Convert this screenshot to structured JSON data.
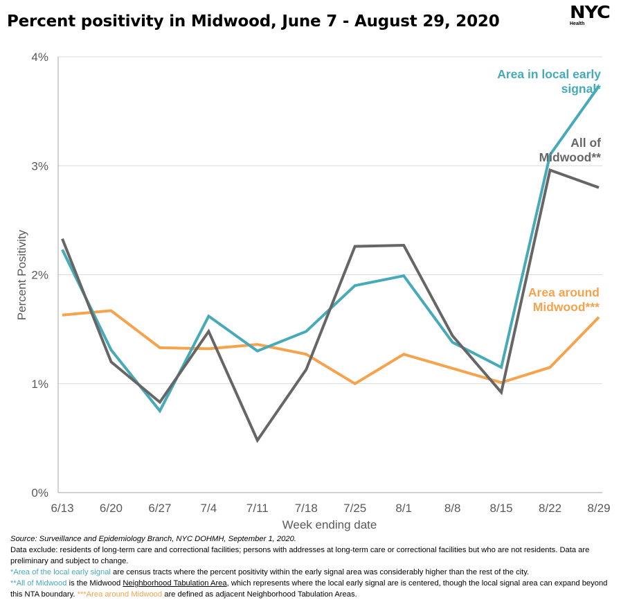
{
  "title": "Percent positivity in Midwood, June 7 - August 29, 2020",
  "logo": {
    "mark": "NYC",
    "sub": "Health"
  },
  "chart_data": {
    "type": "line",
    "title": "Percent positivity in Midwood, June 7 - August 29, 2020",
    "xlabel": "Week ending date",
    "ylabel": "Percent Positivity",
    "categories": [
      "6/13",
      "6/20",
      "6/27",
      "7/4",
      "7/11",
      "7/18",
      "7/25",
      "8/1",
      "8/8",
      "8/15",
      "8/22",
      "8/29"
    ],
    "ylim": [
      0,
      4
    ],
    "yticks": [
      0,
      1,
      2,
      3,
      4
    ],
    "ytick_labels": [
      "0%",
      "1%",
      "2%",
      "3%",
      "4%"
    ],
    "grid": true,
    "series": [
      {
        "name": "Area in local early signal*",
        "label_lines": [
          "Area in local early",
          "signal*"
        ],
        "color": "#46aab9",
        "values": [
          2.23,
          1.31,
          0.75,
          1.62,
          1.3,
          1.48,
          1.9,
          1.99,
          1.38,
          1.15,
          3.1,
          3.73
        ]
      },
      {
        "name": "All of Midwood**",
        "label_lines": [
          "All of",
          "Midwood**"
        ],
        "color": "#666666",
        "values": [
          2.33,
          1.2,
          0.83,
          1.48,
          0.48,
          1.13,
          2.26,
          2.27,
          1.44,
          0.92,
          2.96,
          2.8
        ]
      },
      {
        "name": "Area around Midwood***",
        "label_lines": [
          "Area around",
          "Midwood***"
        ],
        "color": "#f5a34c",
        "values": [
          1.63,
          1.67,
          1.33,
          1.32,
          1.36,
          1.27,
          1.0,
          1.27,
          1.14,
          1.01,
          1.15,
          1.61
        ]
      }
    ]
  },
  "notes": {
    "source": "Source: Surveillance and Epidemiology Branch, NYC DOHMH, September 1, 2020.",
    "exclude": "Data exclude: residents of long-term care and correctional facilities; persons with addresses at long-term care or correctional facilities but who are not residents. Data are preliminary and subject to change.",
    "n1_colored": "*Area of the local early signal",
    "n1_rest": " are census tracts where the percent positivity within the early signal area was considerably higher than the rest of the city.",
    "n2_colored": "**All of Midwood",
    "n2_mid1": " is the Midwood ",
    "n2_link": "Neighborhood Tabulation Area",
    "n2_mid2": ", which represents where the local early signal are is centered, though the local signal area can expand beyond this NTA boundary. ",
    "n2_colored2": "***Area around Midwood",
    "n2_end": " are defined as adjacent Neighborhood Tabulation Areas."
  }
}
